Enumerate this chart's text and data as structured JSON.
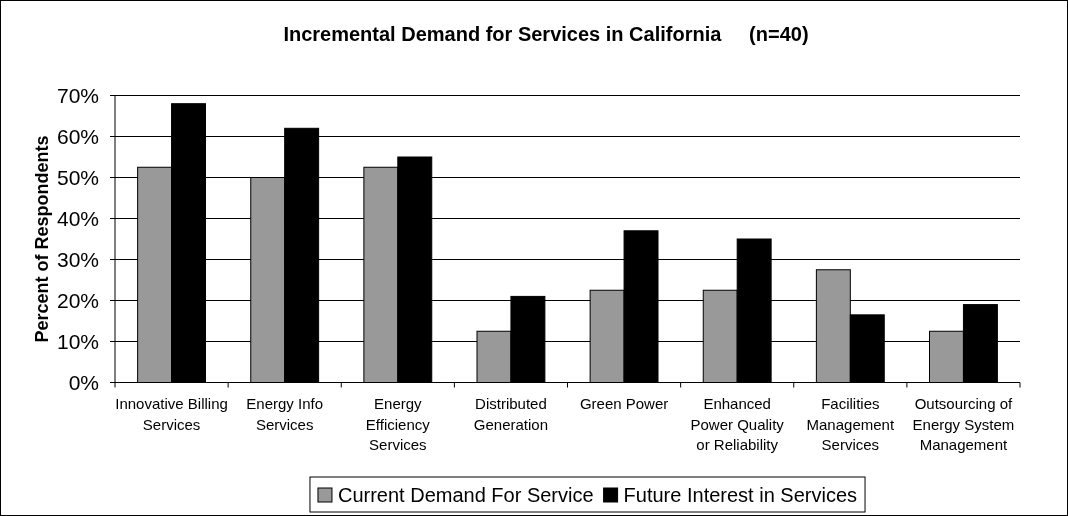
{
  "chart_data": {
    "type": "bar",
    "title": "Incremental Demand for Services in California     (n=40)",
    "ylabel": "Percent of Respondents",
    "categories": [
      "Innovative Billing\nServices",
      "Energy Info\nServices",
      "Energy\nEfficiency\nServices",
      "Distributed\nGeneration",
      "Green Power",
      "Enhanced\nPower Quality\nor Reliability",
      "Facilities\nManagement\nServices",
      "Outsourcing of\nEnergy System\nManagement"
    ],
    "series": [
      {
        "name": "Current Demand For Service",
        "color": "#999999",
        "values": [
          52.5,
          50,
          52.5,
          12.5,
          22.5,
          22.5,
          27.5,
          12.5
        ]
      },
      {
        "name": "Future Interest in Services",
        "color": "#000000",
        "values": [
          68,
          62,
          55,
          21,
          37,
          35,
          16.5,
          19
        ]
      }
    ],
    "ylim": [
      0,
      70
    ],
    "yticks": [
      {
        "value": 0,
        "label": "0%"
      },
      {
        "value": 10,
        "label": "10%"
      },
      {
        "value": 20,
        "label": "20%"
      },
      {
        "value": 30,
        "label": "30%"
      },
      {
        "value": 40,
        "label": "40%"
      },
      {
        "value": 50,
        "label": "50%"
      },
      {
        "value": 60,
        "label": "60%"
      },
      {
        "value": 70,
        "label": "70%"
      }
    ],
    "grid": "y",
    "legend": "bottom"
  }
}
